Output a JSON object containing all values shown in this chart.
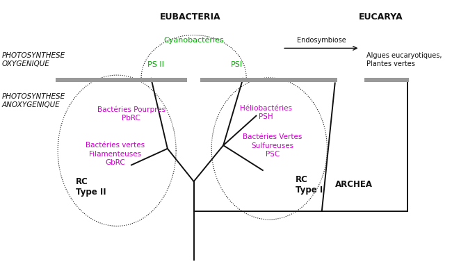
{
  "title_eubacteria": "EUBACTERIA",
  "title_eucarya": "EUCARYA",
  "label_photosyn_oxy": "PHOTOSYNTHESE\nOXYGENIQUE",
  "label_photosyn_anoxy": "PHOTOSYNTHESE\nANOXYGENIQUE",
  "label_cyano": "Cyanobactéries",
  "label_psii": "PS II",
  "label_psi": "PSI",
  "label_helio": "Héliobactéries\nPSH",
  "label_bact_vertes_sulf": "Bactéries Vertes\nSulfureuses\nPSC",
  "label_bact_pourpres": "Bactéries Pourpres\nPbRC",
  "label_bact_vertes_fil": "Bactéries vertes\nFilamenteuses\nGbRC",
  "label_rc_typeII": "RC\nType II",
  "label_rc_typeI": "RC\nType I",
  "label_archea": "ARCHEA",
  "label_endosymbiose": "Endosymbiose",
  "label_algues": "Algues eucaryotiques,\nPlantes vertes",
  "color_green": "#00aa00",
  "color_purple": "#cc00cc",
  "color_black": "#111111",
  "color_gray": "#888888",
  "background": "#ffffff"
}
